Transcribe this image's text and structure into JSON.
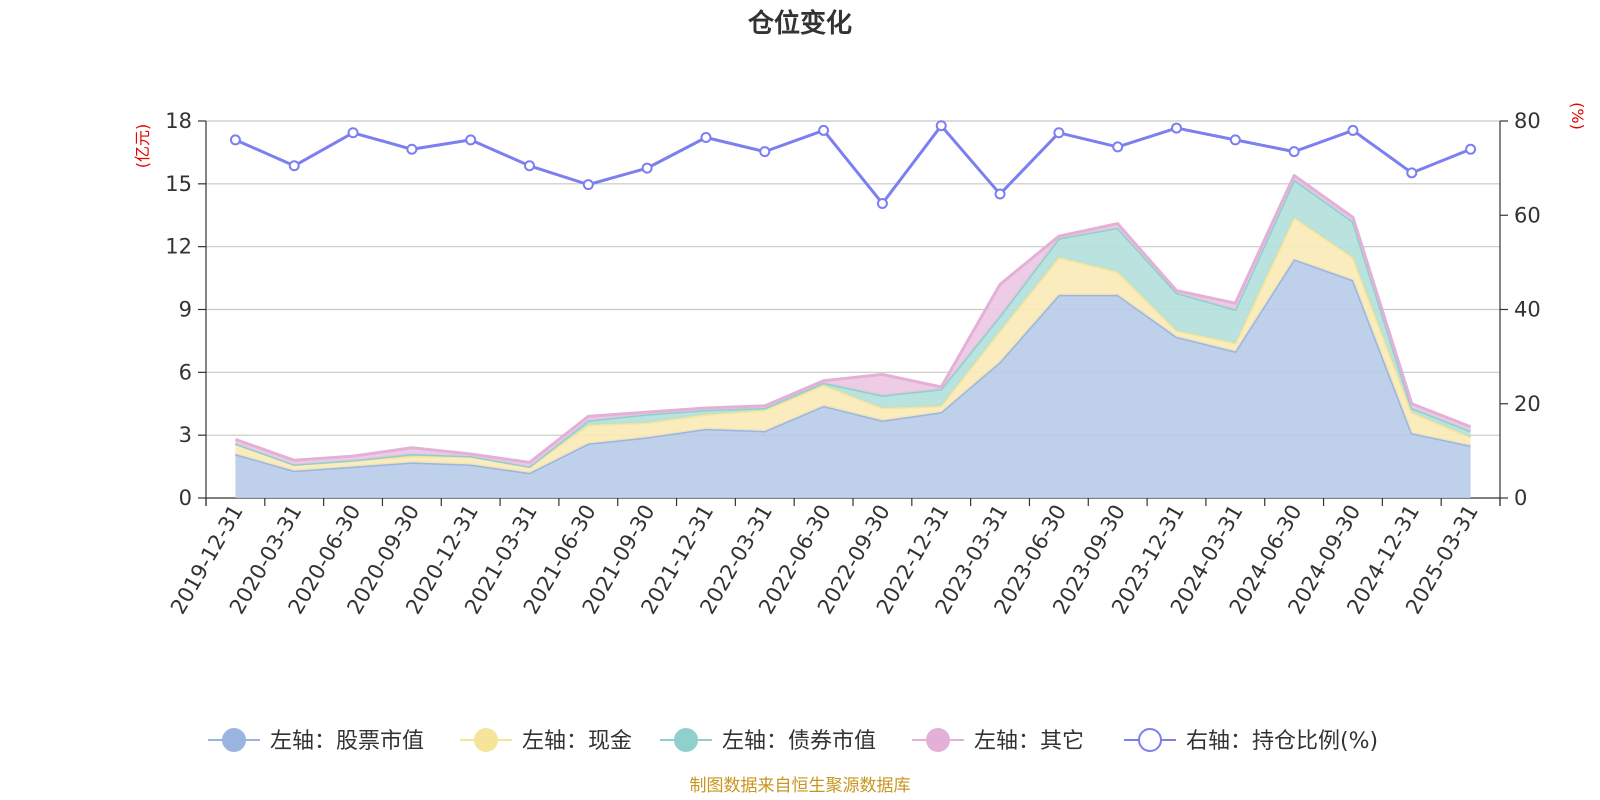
{
  "chart_data": {
    "type": "area",
    "title": "仓位变化",
    "source": "制图数据来自恒生聚源数据库",
    "left_axis": {
      "unit": "(亿元)",
      "min": 0,
      "max": 18,
      "ticks": [
        0,
        3,
        6,
        9,
        12,
        15,
        18
      ]
    },
    "right_axis": {
      "unit": "(%)",
      "min": 0,
      "max": 80,
      "ticks": [
        0,
        20,
        40,
        60,
        80
      ]
    },
    "categories": [
      "2019-12-31",
      "2020-03-31",
      "2020-06-30",
      "2020-09-30",
      "2020-12-31",
      "2021-03-31",
      "2021-06-30",
      "2021-09-30",
      "2021-12-31",
      "2022-03-31",
      "2022-06-30",
      "2022-09-30",
      "2022-12-31",
      "2023-03-31",
      "2023-06-30",
      "2023-09-30",
      "2023-12-31",
      "2024-03-31",
      "2024-06-30",
      "2024-09-30",
      "2024-12-31",
      "2025-03-31"
    ],
    "series": [
      {
        "name": "左轴：股票市值",
        "axis": "left",
        "stack": true,
        "line": "#9bb5e0",
        "fill": "#b8cbe9",
        "values": [
          2.1,
          1.3,
          1.5,
          1.7,
          1.6,
          1.2,
          2.6,
          2.9,
          3.3,
          3.2,
          4.4,
          3.7,
          4.1,
          6.5,
          9.7,
          9.7,
          7.7,
          7.0,
          11.4,
          10.4,
          3.1,
          2.5
        ]
      },
      {
        "name": "左轴：现金",
        "axis": "left",
        "stack": true,
        "line": "#f5e49a",
        "fill": "#f9eab5",
        "values": [
          0.5,
          0.3,
          0.3,
          0.3,
          0.4,
          0.3,
          0.9,
          0.7,
          0.7,
          1.0,
          1.0,
          0.6,
          0.3,
          1.5,
          1.8,
          1.1,
          0.3,
          0.4,
          2.0,
          1.1,
          1.0,
          0.4
        ]
      },
      {
        "name": "左轴：债券市值",
        "axis": "left",
        "stack": true,
        "line": "#8fd0cc",
        "fill": "#b2e0dc",
        "values": [
          0.0,
          0.0,
          0.0,
          0.1,
          0.0,
          0.0,
          0.2,
          0.4,
          0.2,
          0.1,
          0.1,
          0.6,
          0.8,
          0.7,
          0.9,
          2.1,
          1.8,
          1.6,
          1.8,
          1.7,
          0.2,
          0.3
        ]
      },
      {
        "name": "左轴：其它",
        "axis": "left",
        "stack": true,
        "line": "#e3b1d8",
        "fill": "#ecc6e3",
        "values": [
          0.2,
          0.2,
          0.2,
          0.3,
          0.1,
          0.2,
          0.2,
          0.1,
          0.1,
          0.1,
          0.1,
          1.0,
          0.1,
          1.5,
          0.1,
          0.2,
          0.1,
          0.3,
          0.2,
          0.2,
          0.2,
          0.2
        ]
      },
      {
        "name": "右轴：持仓比例(%)",
        "axis": "right",
        "stack": false,
        "line": "#7b7ff0",
        "fill": "#ffffff",
        "values": [
          76.0,
          70.5,
          77.5,
          74.0,
          76.0,
          70.5,
          66.5,
          70.0,
          76.5,
          73.5,
          78.0,
          62.5,
          79.0,
          64.5,
          77.5,
          74.5,
          78.5,
          76.0,
          73.5,
          78.0,
          69.0,
          74.0
        ]
      }
    ]
  }
}
